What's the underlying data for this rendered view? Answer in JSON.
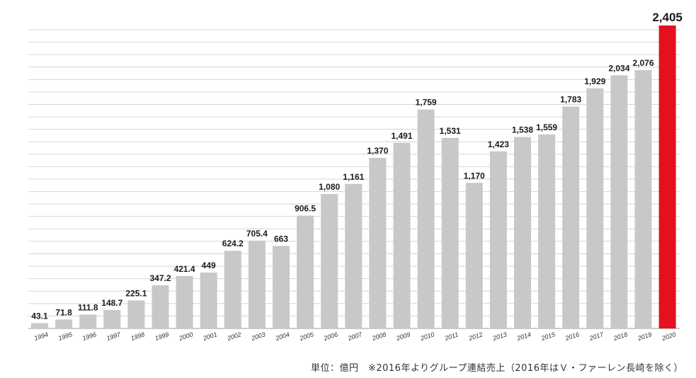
{
  "footnote": "単位：億円　※2016年よりグループ連結売上（2016年はＶ・ファーレン長崎を除く）",
  "colors": {
    "bar": "#c8c8c8",
    "highlight": "#e5111f"
  },
  "chart_data": {
    "type": "bar",
    "title": "",
    "xlabel": "",
    "ylabel": "",
    "unit": "億円",
    "ylim": [
      0,
      2400
    ],
    "grid": true,
    "highlight_category": "2020",
    "categories": [
      "1994",
      "1995",
      "1996",
      "1997",
      "1998",
      "1999",
      "2000",
      "2001",
      "2002",
      "2003",
      "2004",
      "2005",
      "2006",
      "2007",
      "2008",
      "2009",
      "2010",
      "2011",
      "2012",
      "2013",
      "2014",
      "2015",
      "2016",
      "2017",
      "2018",
      "2019",
      "2020"
    ],
    "values": [
      43.1,
      71.8,
      111.8,
      148.7,
      225.1,
      347.2,
      421.4,
      449,
      624.2,
      705.4,
      663,
      906.5,
      1080,
      1161,
      1370,
      1491,
      1759,
      1531,
      1170,
      1423,
      1538,
      1559,
      1783,
      1929,
      2034,
      2076,
      2405
    ],
    "labels": [
      "43.1",
      "71.8",
      "111.8",
      "148.7",
      "225.1",
      "347.2",
      "421.4",
      "449",
      "624.2",
      "705.4",
      "663",
      "906.5",
      "1,080",
      "1,161",
      "1,370",
      "1,491",
      "1,759",
      "1,531",
      "1,170",
      "1,423",
      "1,538",
      "1,559",
      "1,783",
      "1,929",
      "2,034",
      "2,076",
      "2,405"
    ]
  }
}
